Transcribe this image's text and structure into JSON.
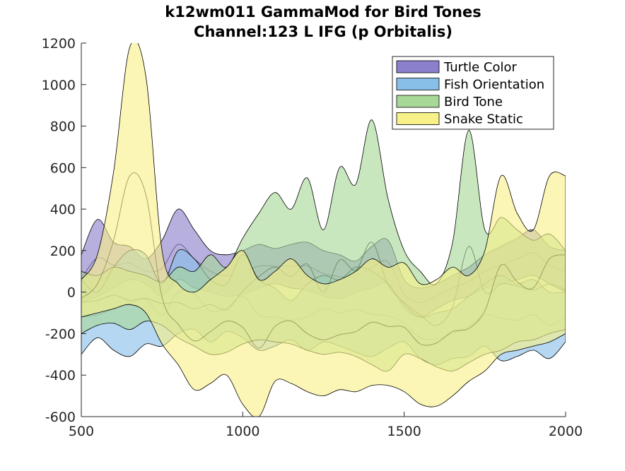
{
  "chart_data": {
    "type": "area",
    "title": "k12wm011 GammaMod for Bird Tones",
    "subtitle": "Channel:123 L IFG (p Orbitalis)",
    "xlabel": "",
    "ylabel": "",
    "xlim": [
      500,
      2000
    ],
    "ylim": [
      -600,
      1200
    ],
    "xticks": [
      500,
      1000,
      1500,
      2000
    ],
    "xtick_labels": [
      "500",
      "1000",
      "1500",
      "2000"
    ],
    "yticks": [
      -600,
      -400,
      -200,
      0,
      200,
      400,
      600,
      800,
      1000,
      1200
    ],
    "ytick_labels": [
      "-600",
      "-400",
      "-200",
      "0",
      "200",
      "400",
      "600",
      "800",
      "1000",
      "1200"
    ],
    "grid": false,
    "legend_position": "top-right",
    "series": [
      {
        "name": "Turtle Color",
        "color": "#8b80cc",
        "x": [
          500,
          550,
          600,
          650,
          700,
          750,
          800,
          850,
          900,
          950,
          1000,
          1050,
          1100,
          1150,
          1200,
          1250,
          1300,
          1350,
          1400,
          1450,
          1500,
          1550,
          1600,
          1650,
          1700,
          1750,
          1800,
          1850,
          1900,
          1950,
          2000
        ],
        "upper": [
          180,
          350,
          240,
          220,
          160,
          250,
          400,
          300,
          200,
          180,
          200,
          230,
          210,
          230,
          240,
          200,
          180,
          150,
          220,
          250,
          60,
          20,
          40,
          80,
          120,
          180,
          220,
          260,
          300,
          220,
          200
        ],
        "lower": [
          -50,
          -20,
          20,
          60,
          40,
          -20,
          60,
          20,
          0,
          -20,
          -10,
          20,
          40,
          20,
          10,
          -20,
          -30,
          0,
          20,
          40,
          -80,
          -120,
          -80,
          -40,
          -20,
          20,
          40,
          60,
          80,
          40,
          0
        ]
      },
      {
        "name": "Fish Orientation",
        "color": "#88bfe8",
        "x": [
          500,
          550,
          600,
          650,
          700,
          750,
          800,
          850,
          900,
          950,
          1000,
          1050,
          1100,
          1150,
          1200,
          1250,
          1300,
          1350,
          1400,
          1450,
          1500,
          1550,
          1600,
          1650,
          1700,
          1750,
          1800,
          1850,
          1900,
          1950,
          2000
        ],
        "upper": [
          60,
          0,
          120,
          200,
          180,
          40,
          200,
          160,
          60,
          40,
          180,
          60,
          20,
          -40,
          40,
          80,
          60,
          120,
          100,
          40,
          -60,
          -120,
          -100,
          -80,
          -20,
          40,
          80,
          40,
          60,
          0,
          0
        ],
        "lower": [
          -300,
          -220,
          -280,
          -310,
          -250,
          -260,
          -200,
          -180,
          -240,
          -190,
          -220,
          -280,
          -260,
          -230,
          -280,
          -240,
          -260,
          -290,
          -310,
          -270,
          -240,
          -320,
          -350,
          -320,
          -310,
          -260,
          -330,
          -310,
          -280,
          -320,
          -240
        ]
      },
      {
        "name": "Bird Tone",
        "color": "#a8d898",
        "x": [
          500,
          550,
          600,
          650,
          700,
          750,
          800,
          850,
          900,
          950,
          1000,
          1050,
          1100,
          1150,
          1200,
          1250,
          1300,
          1350,
          1400,
          1450,
          1500,
          1550,
          1600,
          1650,
          1700,
          1750,
          1800,
          1850,
          1900,
          1950,
          2000
        ],
        "upper": [
          100,
          80,
          120,
          100,
          80,
          50,
          120,
          100,
          180,
          120,
          260,
          380,
          480,
          400,
          550,
          300,
          600,
          520,
          830,
          450,
          200,
          100,
          40,
          240,
          780,
          300,
          360,
          300,
          250,
          280,
          200
        ],
        "lower": [
          -200,
          -160,
          -150,
          -180,
          -140,
          -160,
          -220,
          -260,
          -300,
          -290,
          -250,
          -230,
          -240,
          -250,
          -280,
          -300,
          -290,
          -310,
          -350,
          -380,
          -300,
          -320,
          -360,
          -380,
          -340,
          -300,
          -280,
          -240,
          -230,
          -200,
          -180
        ]
      },
      {
        "name": "Snake Static",
        "color": "#f8f088",
        "x": [
          500,
          550,
          600,
          650,
          700,
          750,
          800,
          850,
          900,
          950,
          1000,
          1050,
          1100,
          1150,
          1200,
          1250,
          1300,
          1350,
          1400,
          1450,
          1500,
          1550,
          1600,
          1650,
          1700,
          1750,
          1800,
          1850,
          1900,
          1950,
          2000
        ],
        "upper": [
          60,
          180,
          580,
          1180,
          1040,
          200,
          40,
          0,
          60,
          120,
          200,
          60,
          100,
          160,
          80,
          40,
          60,
          100,
          160,
          120,
          140,
          40,
          60,
          120,
          80,
          200,
          560,
          380,
          300,
          560,
          560
        ],
        "lower": [
          -120,
          -100,
          -80,
          -60,
          -100,
          -250,
          -350,
          -470,
          -440,
          -400,
          -540,
          -600,
          -430,
          -440,
          -480,
          -500,
          -470,
          -480,
          -450,
          -450,
          -480,
          -540,
          -550,
          -500,
          -430,
          -380,
          -300,
          -280,
          -260,
          -240,
          -200
        ]
      }
    ]
  }
}
